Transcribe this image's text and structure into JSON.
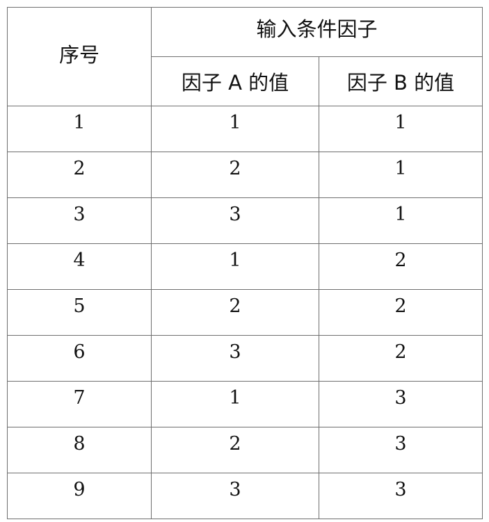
{
  "table": {
    "header": {
      "seq": "序号",
      "group": "输入条件因子",
      "factor_a": "因子 A 的值",
      "factor_b": "因子 B 的值"
    },
    "rows": [
      {
        "seq": "1",
        "a": "1",
        "b": "1"
      },
      {
        "seq": "2",
        "a": "2",
        "b": "1"
      },
      {
        "seq": "3",
        "a": "3",
        "b": "1"
      },
      {
        "seq": "4",
        "a": "1",
        "b": "2"
      },
      {
        "seq": "5",
        "a": "2",
        "b": "2"
      },
      {
        "seq": "6",
        "a": "3",
        "b": "2"
      },
      {
        "seq": "7",
        "a": "1",
        "b": "3"
      },
      {
        "seq": "8",
        "a": "2",
        "b": "3"
      },
      {
        "seq": "9",
        "a": "3",
        "b": "3"
      }
    ]
  }
}
